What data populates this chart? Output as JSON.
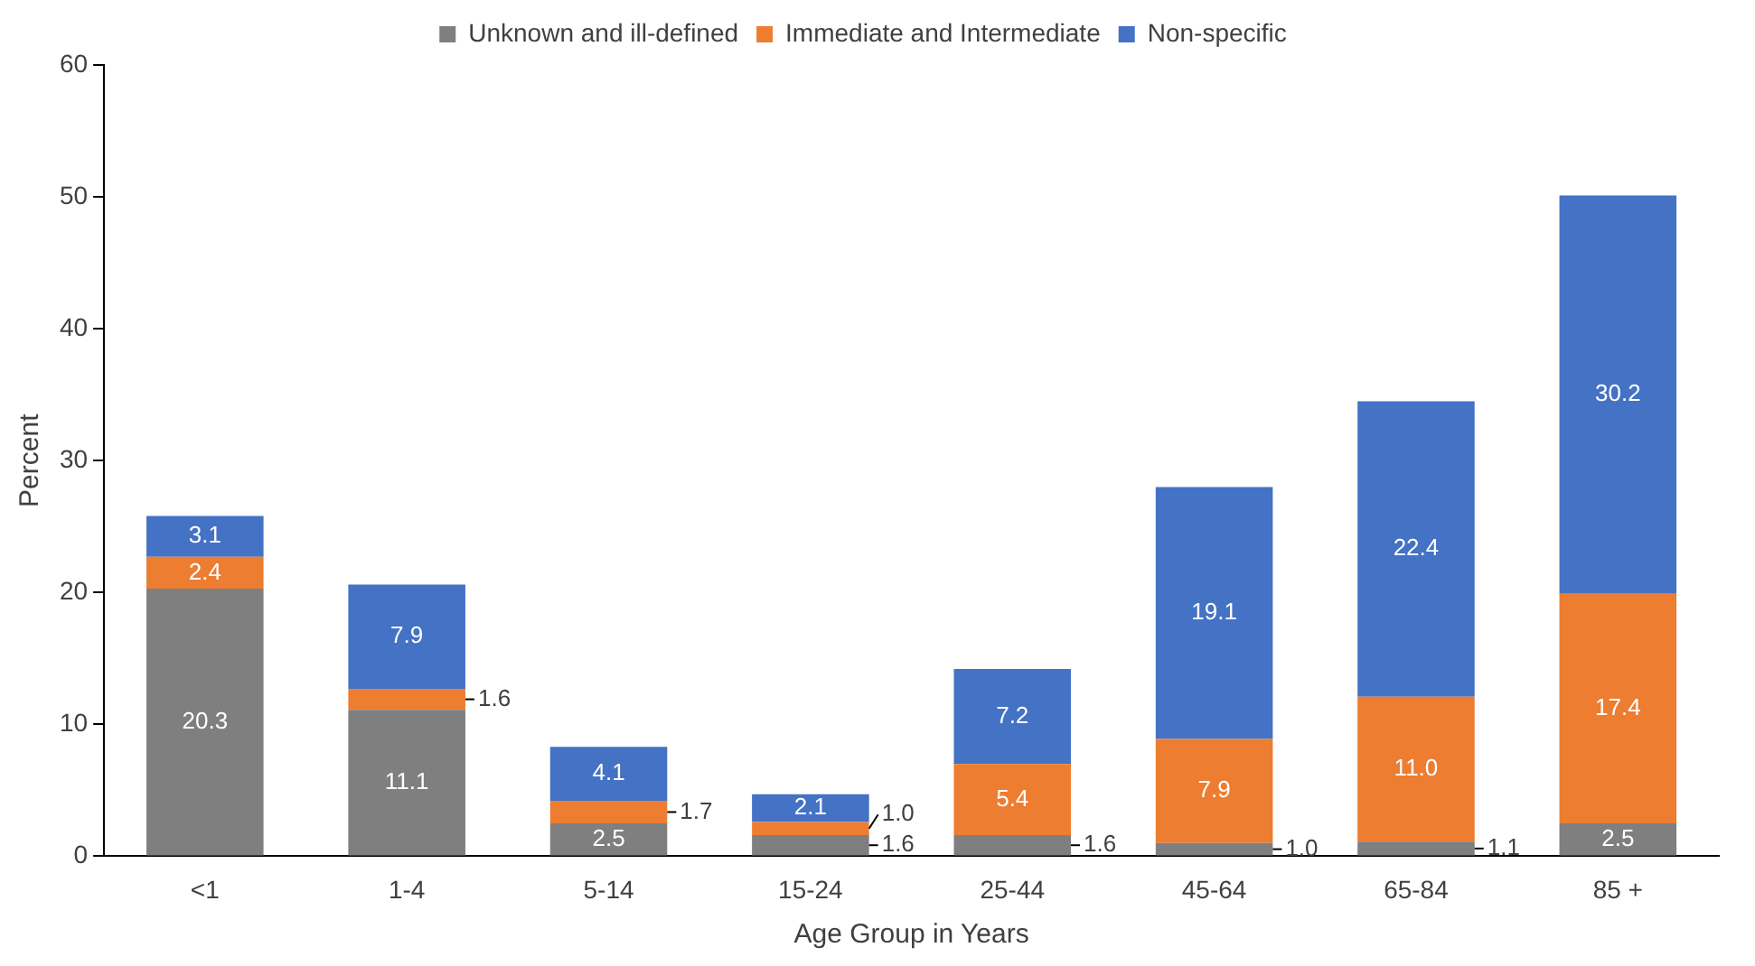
{
  "chart_data": {
    "type": "bar",
    "stacked": true,
    "xlabel": "Age Group in Years",
    "ylabel": "Percent",
    "categories": [
      "<1",
      "1-4",
      "5-14",
      "15-24",
      "25-44",
      "45-64",
      "65-84",
      "85 +"
    ],
    "series": [
      {
        "name": "Unknown and ill-defined",
        "color": "#7f7f7f",
        "values": [
          20.3,
          11.1,
          2.5,
          1.6,
          1.6,
          1,
          1.1,
          2.5
        ],
        "value_labels": [
          "20.3",
          "11.1",
          "2.5",
          "1.6",
          "1.6",
          "1.0",
          "1.1",
          "2.5"
        ]
      },
      {
        "name": "Immediate and Intermediate",
        "color": "#ed7d31",
        "values": [
          2.4,
          1.6,
          1.7,
          1,
          5.4,
          7.9,
          11,
          17.4
        ],
        "value_labels": [
          "2.4",
          "1.6",
          "1.7",
          "1.0",
          "5.4",
          "7.9",
          "11.0",
          "17.4"
        ]
      },
      {
        "name": "Non-specific",
        "color": "#4472c4",
        "values": [
          3.1,
          7.9,
          4.1,
          2.1,
          7.2,
          19.1,
          22.4,
          30.2
        ],
        "value_labels": [
          "3.1",
          "7.9",
          "4.1",
          "2.1",
          "7.2",
          "19.1",
          "22.4",
          "30.2"
        ]
      }
    ],
    "ylim": [
      0,
      60
    ],
    "yticks": [
      0,
      10,
      20,
      30,
      40,
      50,
      60
    ],
    "grid": false,
    "legend": "top"
  }
}
